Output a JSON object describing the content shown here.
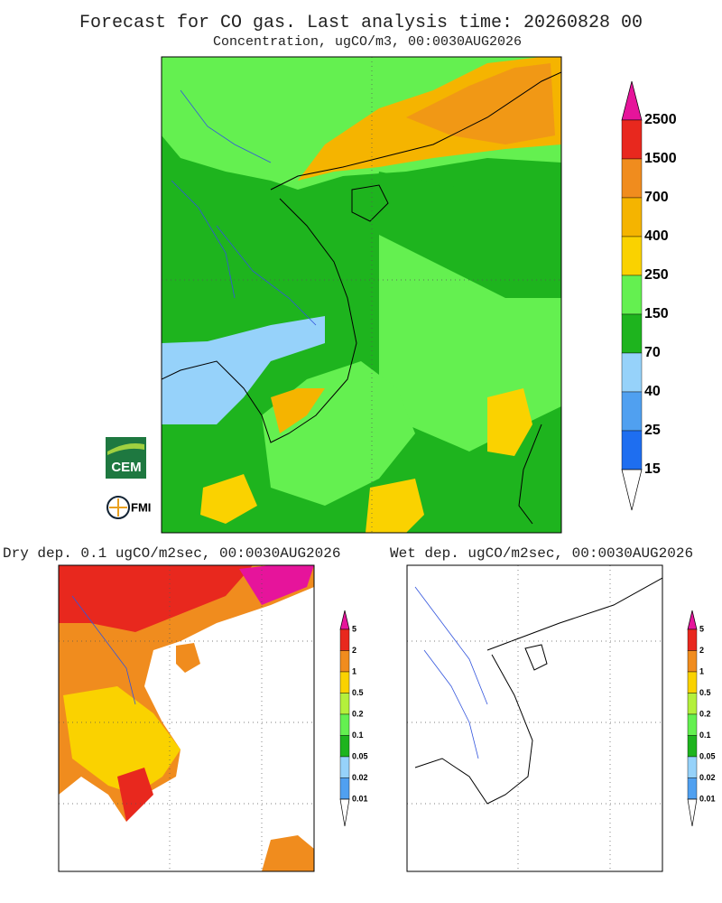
{
  "header": {
    "title": "Forecast for CO gas. Last analysis time: 20260828 00"
  },
  "main_map": {
    "title": "Concentration, ugCO/m3, 00:0030AUG2026",
    "legend": {
      "levels": [
        2500,
        1500,
        700,
        400,
        250,
        150,
        70,
        40,
        25,
        15
      ],
      "colors": [
        "#e8281e",
        "#f08c1e",
        "#f5b400",
        "#fad200",
        "#64f050",
        "#1eb41e",
        "#96d2fa",
        "#50a0f0",
        "#1e6ef0"
      ],
      "top_color": "#e6149b",
      "bottom_color": "#ffffff"
    }
  },
  "logos": [
    "CEM",
    "FMI"
  ],
  "dry_map": {
    "title": "Dry dep. 0.1 ugCO/m2sec, 00:0030AUG2026",
    "legend": {
      "levels": [
        5,
        2,
        1,
        0.5,
        0.2,
        0.1,
        0.05,
        0.02,
        0.01
      ],
      "colors": [
        "#e8281e",
        "#f08c1e",
        "#fad200",
        "#b4f03c",
        "#64f050",
        "#1eb41e",
        "#96d2fa",
        "#50a0f0"
      ],
      "top_color": "#e6149b",
      "bottom_color": "#ffffff"
    }
  },
  "wet_map": {
    "title": "Wet dep. ugCO/m2sec, 00:0030AUG2026",
    "legend": {
      "levels": [
        5,
        2,
        1,
        0.5,
        0.2,
        0.1,
        0.05,
        0.02,
        0.01
      ],
      "colors": [
        "#e8281e",
        "#f08c1e",
        "#fad200",
        "#b4f03c",
        "#64f050",
        "#1eb41e",
        "#96d2fa",
        "#50a0f0"
      ],
      "top_color": "#e6149b",
      "bottom_color": "#ffffff"
    }
  }
}
